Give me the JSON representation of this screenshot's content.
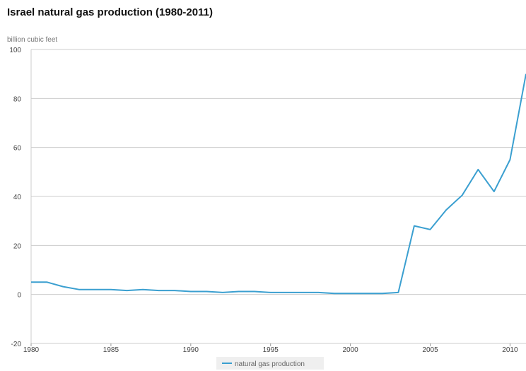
{
  "chart_data": {
    "type": "line",
    "title": "Israel natural gas production (1980-2011)",
    "ylabel": "billion cubic feet",
    "xlabel": "",
    "xlim": [
      1980,
      2011
    ],
    "ylim": [
      -20,
      100
    ],
    "yticks": [
      -20,
      0,
      20,
      40,
      60,
      80,
      100
    ],
    "xticks": [
      1980,
      1985,
      1990,
      1995,
      2000,
      2005,
      2010
    ],
    "grid": true,
    "legend": "bottom-center",
    "series": [
      {
        "name": "natural gas production",
        "color": "#3a9fd0",
        "x": [
          1980,
          1981,
          1982,
          1983,
          1984,
          1985,
          1986,
          1987,
          1988,
          1989,
          1990,
          1991,
          1992,
          1993,
          1994,
          1995,
          1996,
          1997,
          1998,
          1999,
          2000,
          2001,
          2002,
          2003,
          2004,
          2005,
          2006,
          2007,
          2008,
          2009,
          2010,
          2011
        ],
        "y": [
          5,
          5,
          3.2,
          2,
          2,
          2,
          1.6,
          2,
          1.6,
          1.6,
          1.2,
          1.2,
          0.8,
          1.2,
          1.2,
          0.8,
          0.8,
          0.8,
          0.8,
          0.4,
          0.4,
          0.4,
          0.4,
          0.8,
          28,
          26.5,
          34.5,
          40.5,
          51,
          42,
          55,
          90
        ]
      }
    ]
  }
}
